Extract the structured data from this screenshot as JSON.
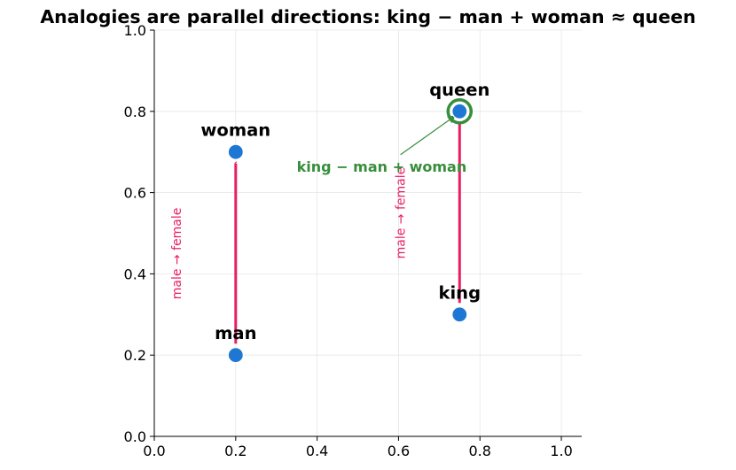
{
  "chart_data": {
    "type": "scatter",
    "title": "Analogies are parallel directions:  king − man + woman ≈ queen",
    "xlabel": "",
    "ylabel": "",
    "xlim": [
      0.0,
      1.05
    ],
    "ylim": [
      0.0,
      1.0
    ],
    "xticks": [
      0.0,
      0.2,
      0.4,
      0.6,
      0.8,
      1.0
    ],
    "yticks": [
      0.0,
      0.2,
      0.4,
      0.6,
      0.8,
      1.0
    ],
    "xtick_labels": [
      "0.0",
      "0.2",
      "0.4",
      "0.6",
      "0.8",
      "1.0"
    ],
    "ytick_labels": [
      "0.0",
      "0.2",
      "0.4",
      "0.6",
      "0.8",
      "1.0"
    ],
    "grid": true,
    "spines": "left-bottom",
    "points": [
      {
        "label": "man",
        "x": 0.2,
        "y": 0.2
      },
      {
        "label": "woman",
        "x": 0.2,
        "y": 0.7
      },
      {
        "label": "king",
        "x": 0.75,
        "y": 0.3
      },
      {
        "label": "queen",
        "x": 0.75,
        "y": 0.8
      }
    ],
    "arrows": [
      {
        "from": [
          0.2,
          0.2
        ],
        "to": [
          0.2,
          0.7
        ],
        "label": "male → female"
      },
      {
        "from": [
          0.75,
          0.3
        ],
        "to": [
          0.75,
          0.8
        ],
        "label": "male → female"
      }
    ],
    "highlight": {
      "x": 0.75,
      "y": 0.8,
      "style": "ring"
    },
    "annotation": {
      "text": "king − man + woman",
      "target": [
        0.75,
        0.8
      ],
      "text_pos": [
        0.35,
        0.665
      ]
    },
    "colors": {
      "point": "#1f77d4",
      "arrow": "#e91e63",
      "annotation": "#388e3c",
      "grid": "#e6e6e6",
      "axis": "#000000"
    }
  }
}
